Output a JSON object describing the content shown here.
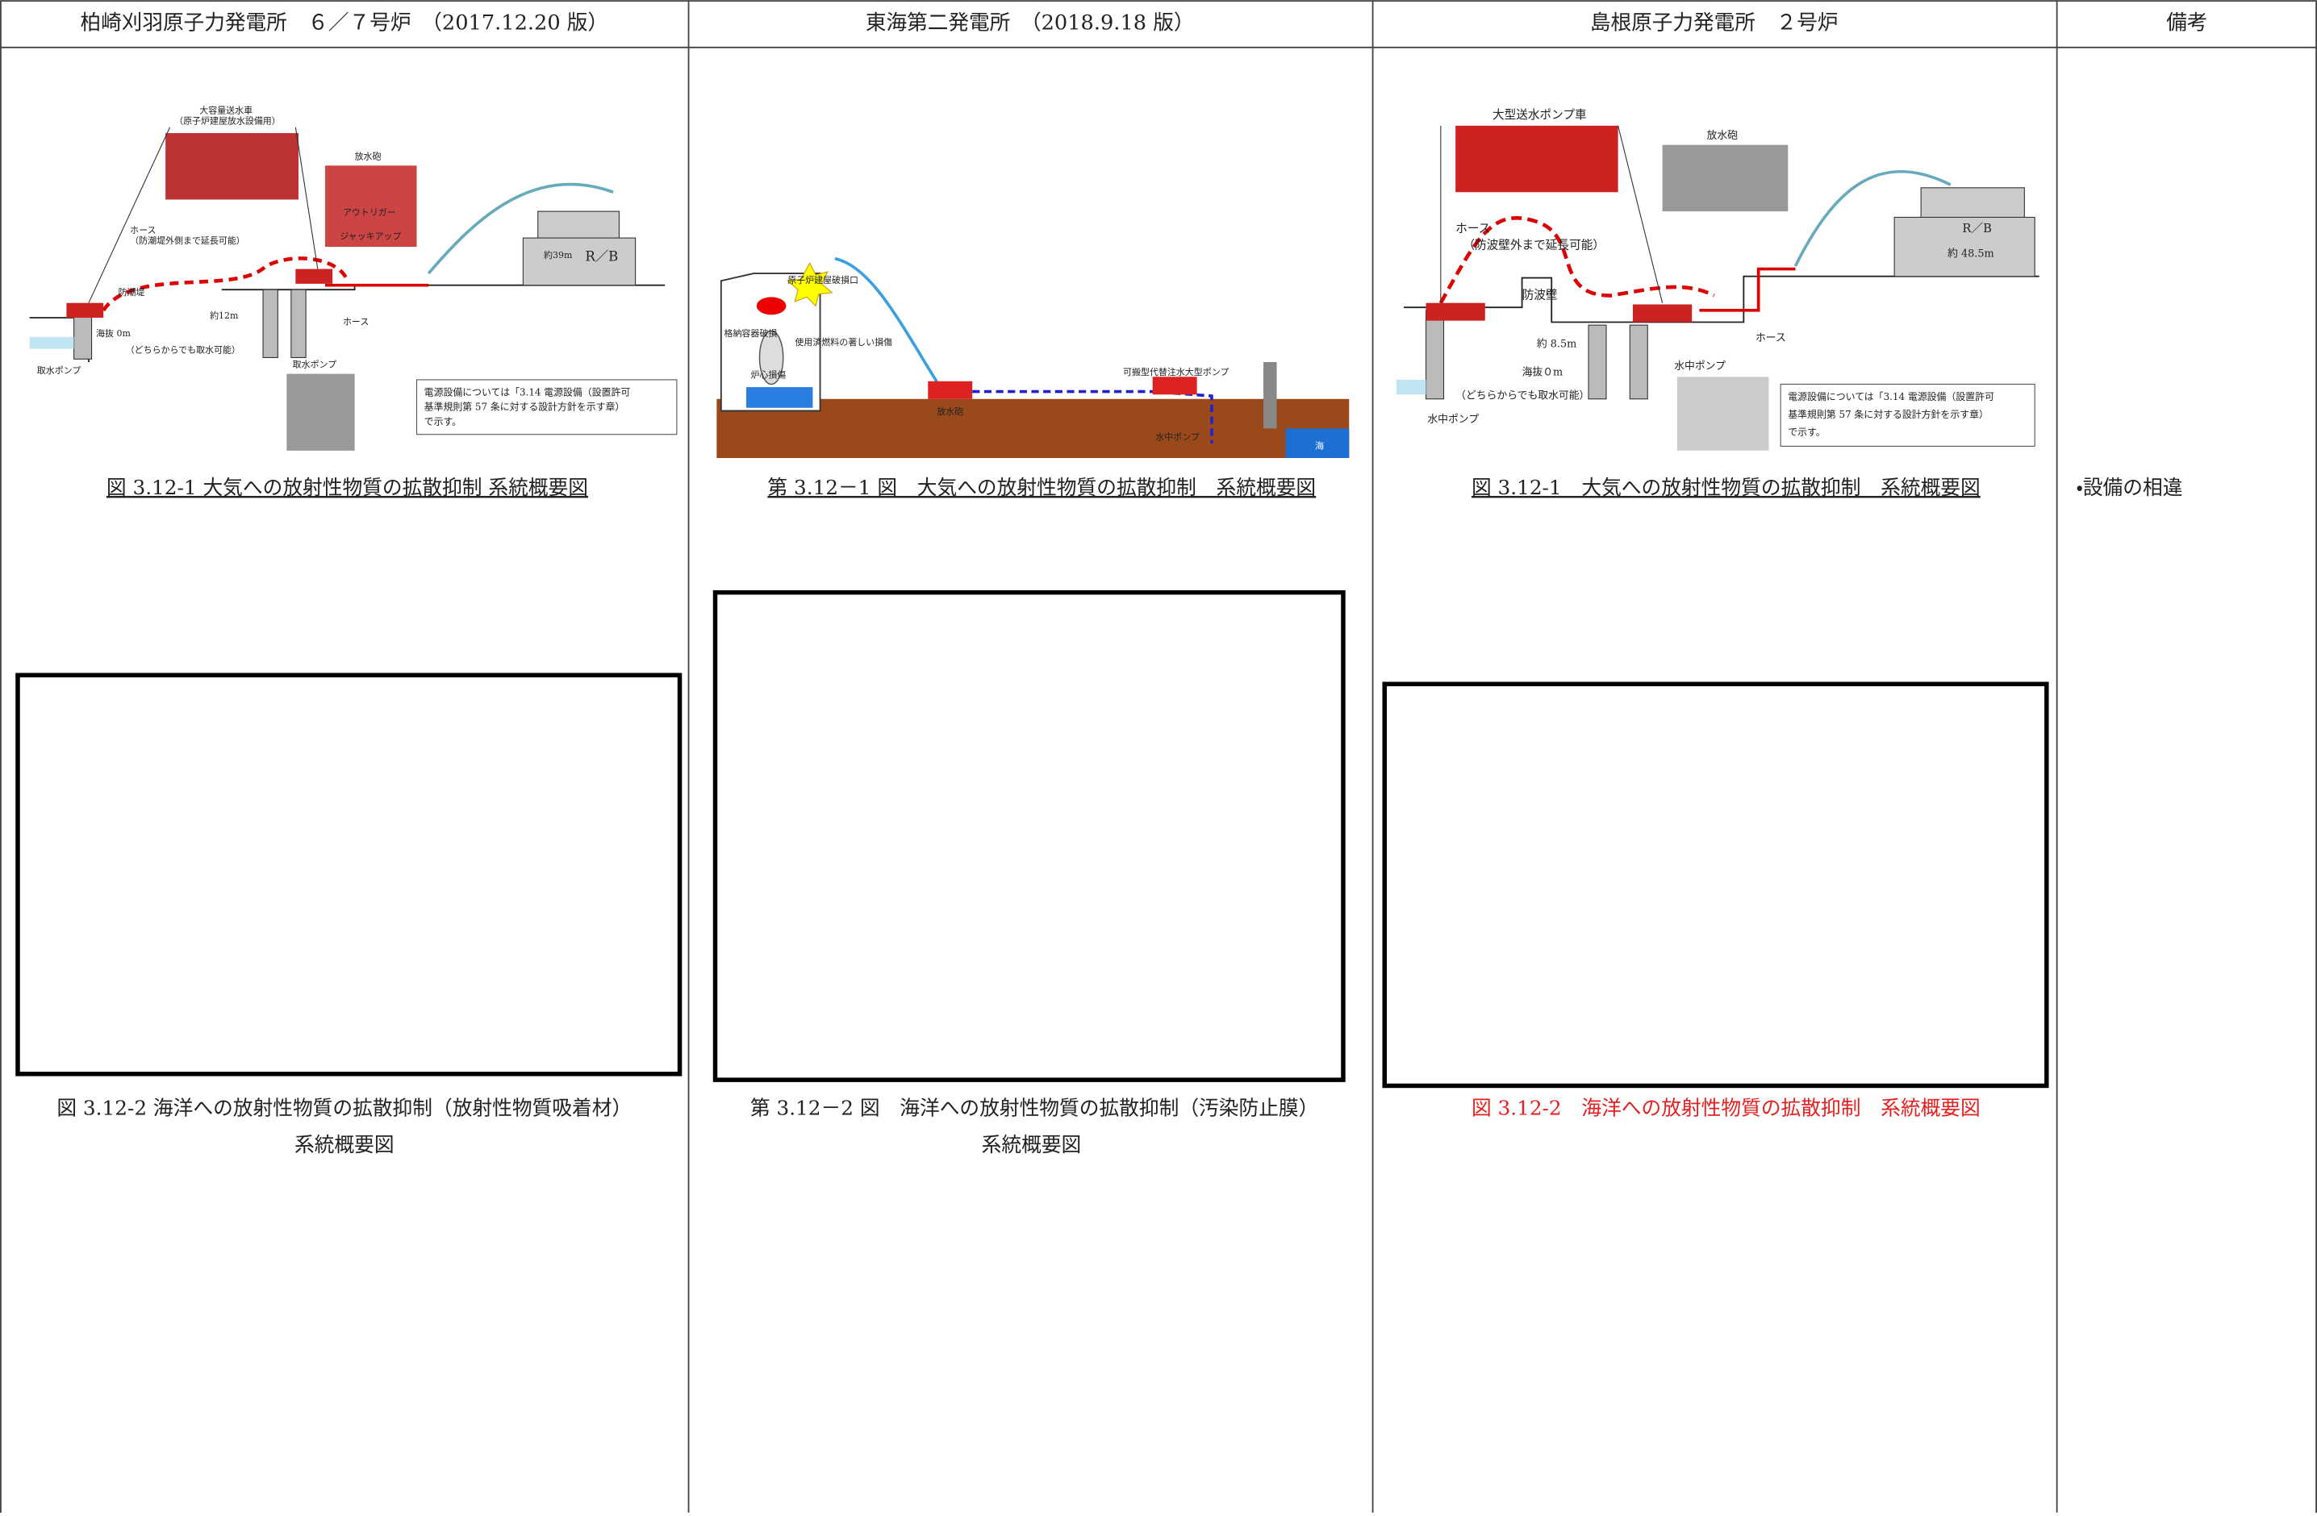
{
  "header": [
    "柏崎刈羽原子力発電所　６／７号炉　（2017.12.20 版）",
    "東海第二発電所　（2018.9.18 版）",
    "島根原子力発電所　２号炉",
    "備考"
  ],
  "columns": [
    {
      "figure1": {
        "labels": [
          "大容量送水車",
          "（原子炉建屋放水設備用）",
          "放水砲",
          "アウトリガー",
          "ジャッキアップ",
          "ホース",
          "（防潮堤外側まで延長可能）",
          "防潮堤",
          "約12m",
          "海抜 0m",
          "（どちらからでも取水可能）",
          "取水ポンプ",
          "ホース",
          "約39m",
          "R／B",
          "取水ポンプ"
        ],
        "note": [
          "電源設備については「3.14 電源設備（設置許可",
          "基準規則第 57 条に対する設計方針を示す章）",
          "で示す。"
        ],
        "caption": "図 3.12-1 大気への放射性物質の拡散抑制 系統概要図"
      },
      "figure2": {
        "caption": [
          "図 3.12-2 海洋への放射性物質の拡散抑制（放射性物質吸着材）",
          "系統概要図"
        ]
      }
    },
    {
      "figure1": {
        "labels": [
          "原子炉建屋破損口",
          "格納容器破損",
          "使用済燃料の著しい損傷",
          "炉心損傷",
          "放水砲",
          "可搬型代替注水大型ポンプ",
          "水中ポンプ",
          "海"
        ],
        "caption": "第 3.12－1 図　大気への放射性物質の拡散抑制　系統概要図"
      },
      "figure2": {
        "caption": [
          "第 3.12－2 図　海洋への放射性物質の拡散抑制（汚染防止膜）",
          "系統概要図"
        ]
      }
    },
    {
      "figure1": {
        "labels": [
          "大型送水ポンプ車",
          "放水砲",
          "ホース",
          "（防波壁外まで延長可能）",
          "防波壁",
          "R／B",
          "約 48.5m",
          "約 8.5m",
          "海抜０m",
          "（どちらからでも取水可能）",
          "水中ポンプ",
          "ホース",
          "水中ポンプ"
        ],
        "note": [
          "電源設備については「3.14 電源設備（設置許可",
          "基準規則第 57 条に対する設計方針を示す章）",
          "で示す。"
        ],
        "caption": "図 3.12-1　大気への放射性物質の拡散抑制　系統概要図"
      },
      "figure2": {
        "caption": [
          "図 3.12-2　海洋への放射性物質の拡散抑制　系統概要図"
        ]
      }
    },
    {
      "remarks": [
        "・設備の相違"
      ]
    }
  ]
}
